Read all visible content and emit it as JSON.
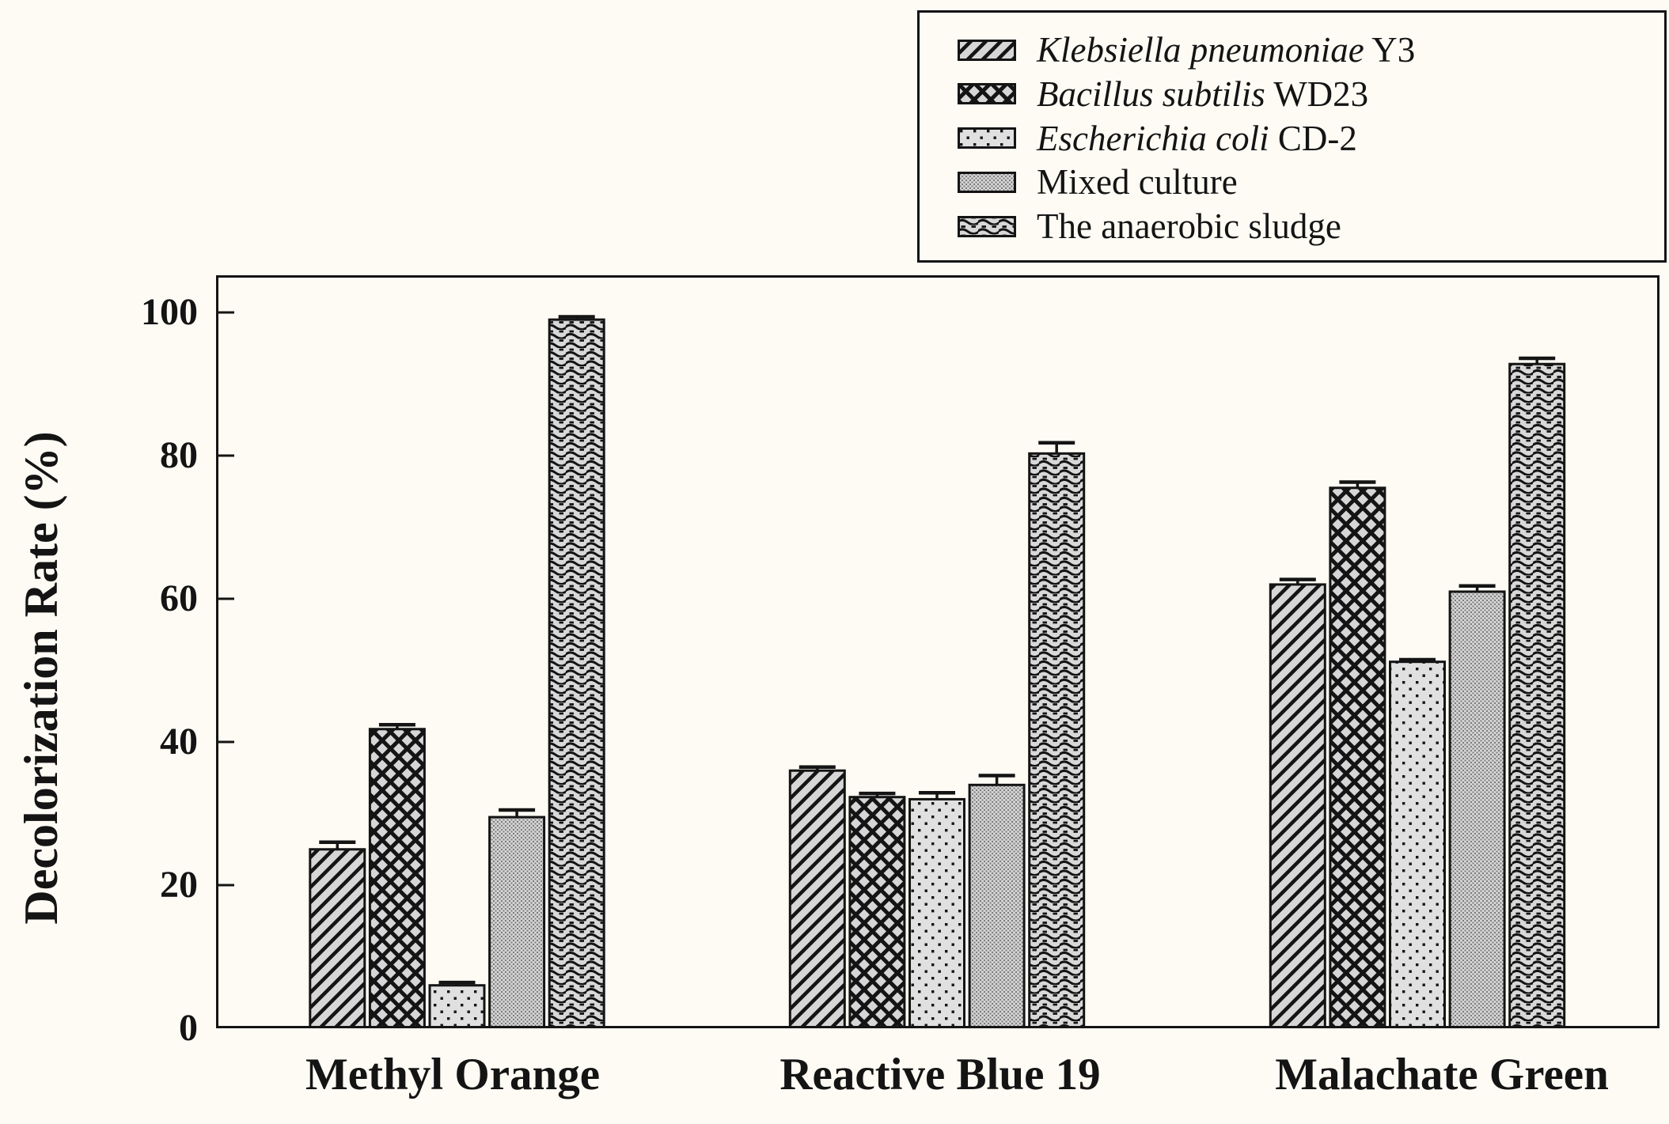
{
  "figure": {
    "background": "#fdfbf4",
    "ink": "#141414",
    "bar_fill": "#d6d6d6"
  },
  "chart_data": {
    "type": "bar",
    "title": "",
    "xlabel": "",
    "ylabel": "Decolorization Rate (%)",
    "ylim": [
      0,
      105.2
    ],
    "yticks": [
      0,
      20,
      40,
      60,
      80,
      100
    ],
    "ytick_labels": [
      "0",
      "20",
      "40",
      "60",
      "80",
      "100"
    ],
    "grid": false,
    "legend_position": "top-right",
    "error_bars": true,
    "categories": [
      "Methyl Orange",
      "Reactive Blue 19",
      "Malachate Green"
    ],
    "series": [
      {
        "name_italic": "Klebsiella pneumoniae",
        "name_regular": "Y3",
        "pattern": "diagonal-hatch",
        "values": [
          25.0,
          36.0,
          62.0
        ],
        "errors": [
          1.0,
          0.5,
          0.7
        ]
      },
      {
        "name_italic": "Bacillus subtilis",
        "name_regular": "WD23",
        "pattern": "crosshatch",
        "values": [
          41.8,
          32.3,
          75.5
        ],
        "errors": [
          0.6,
          0.5,
          0.8
        ]
      },
      {
        "name_italic": "Escherichia coli",
        "name_regular": "CD-2",
        "pattern": "dots",
        "values": [
          6.0,
          32.0,
          51.2
        ],
        "errors": [
          0.4,
          0.9,
          0.3
        ]
      },
      {
        "name_italic": "",
        "name_regular": "Mixed culture",
        "pattern": "fine-stipple",
        "values": [
          29.5,
          34.0,
          61.0
        ],
        "errors": [
          1.0,
          1.3,
          0.8
        ]
      },
      {
        "name_italic": "",
        "name_regular": "The anaerobic sludge",
        "pattern": "wave",
        "values": [
          99.0,
          80.3,
          92.8
        ],
        "errors": [
          0.4,
          1.5,
          0.8
        ]
      }
    ]
  }
}
